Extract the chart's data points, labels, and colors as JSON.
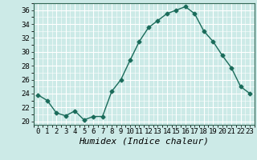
{
  "x": [
    0,
    1,
    2,
    3,
    4,
    5,
    6,
    7,
    8,
    9,
    10,
    11,
    12,
    13,
    14,
    15,
    16,
    17,
    18,
    19,
    20,
    21,
    22,
    23
  ],
  "y": [
    23.8,
    23.0,
    21.2,
    20.8,
    21.5,
    20.2,
    20.7,
    20.7,
    24.3,
    26.0,
    28.8,
    31.5,
    33.5,
    34.5,
    35.5,
    36.0,
    36.5,
    35.5,
    33.0,
    31.5,
    29.5,
    27.7,
    25.0,
    24.0
  ],
  "line_color": "#1a6b5a",
  "marker": "D",
  "marker_size": 2.5,
  "bg_color": "#cceae7",
  "grid_color": "#ffffff",
  "xlabel": "Humidex (Indice chaleur)",
  "xlim": [
    -0.5,
    23.5
  ],
  "ylim": [
    19.5,
    37.0
  ],
  "yticks": [
    20,
    22,
    24,
    26,
    28,
    30,
    32,
    34,
    36
  ],
  "xticks": [
    0,
    1,
    2,
    3,
    4,
    5,
    6,
    7,
    8,
    9,
    10,
    11,
    12,
    13,
    14,
    15,
    16,
    17,
    18,
    19,
    20,
    21,
    22,
    23
  ],
  "tick_fontsize": 6.5,
  "label_fontsize": 8
}
